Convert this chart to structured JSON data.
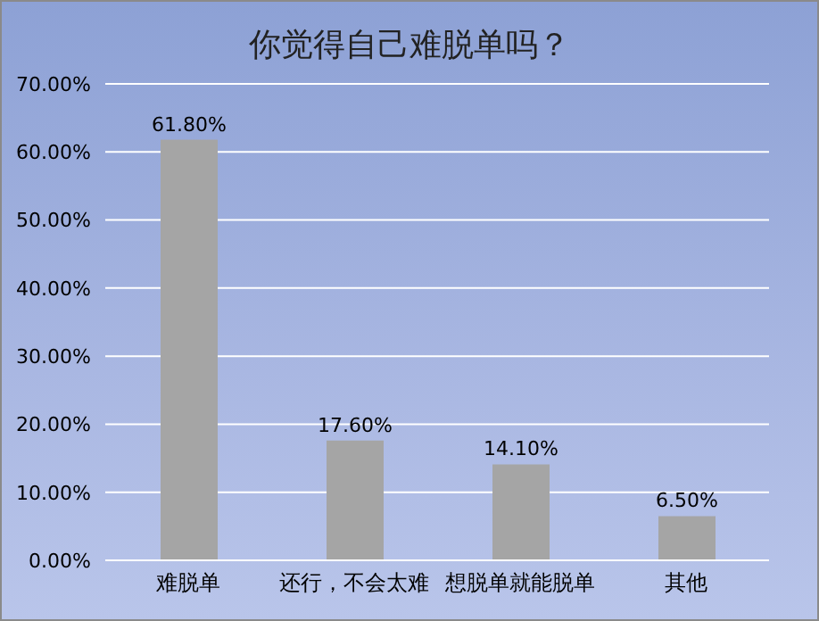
{
  "chart_data": {
    "type": "bar",
    "title": "你觉得自己难脱单吗？",
    "categories": [
      "难脱单",
      "还行，不会太难",
      "想脱单就能脱单",
      "其他"
    ],
    "values": [
      61.8,
      17.6,
      14.1,
      6.5
    ],
    "color": "#a5a5a5",
    "value_labels": [
      "61.80%",
      "17.60%",
      "14.10%",
      "6.50%"
    ],
    "ylim": [
      0,
      70
    ],
    "yticks": [
      {
        "value": 0,
        "label": "0.00%"
      },
      {
        "value": 10,
        "label": "10.00%"
      },
      {
        "value": 20,
        "label": "20.00%"
      },
      {
        "value": 30,
        "label": "30.00%"
      },
      {
        "value": 40,
        "label": "40.00%"
      },
      {
        "value": 50,
        "label": "50.00%"
      },
      {
        "value": 60,
        "label": "60.00%"
      },
      {
        "value": 70,
        "label": "70.00%"
      }
    ],
    "grid": "y"
  }
}
